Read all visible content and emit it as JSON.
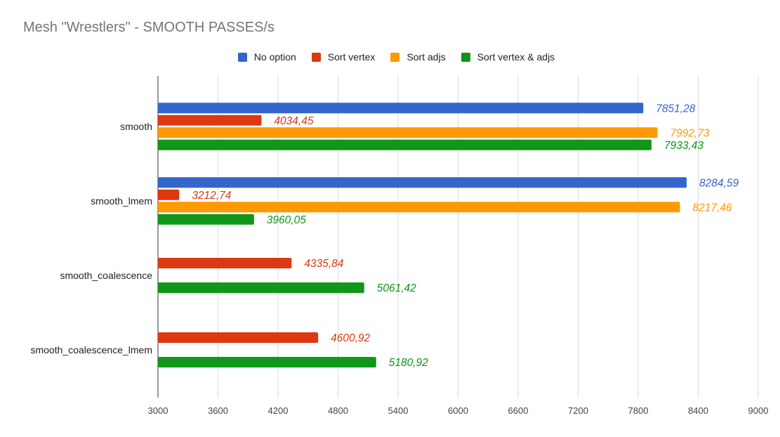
{
  "chart_data": {
    "type": "bar",
    "orientation": "horizontal",
    "title": "Mesh \"Wrestlers\" - SMOOTH PASSES/s",
    "xlabel": "",
    "ylabel": "",
    "xlim": [
      3000,
      9000
    ],
    "x_ticks": [
      "3000",
      "3600",
      "4200",
      "4800",
      "5400",
      "6000",
      "6600",
      "7200",
      "7800",
      "8400",
      "9000"
    ],
    "grid": true,
    "legend_position": "top",
    "categories": [
      "smooth",
      "smooth_lmem",
      "smooth_coalescence",
      "smooth_coalescence_lmem"
    ],
    "series": [
      {
        "name": "No option",
        "color": "#3366cc",
        "values": [
          7851.28,
          8284.59,
          null,
          null
        ],
        "labels": [
          "7851,28",
          "8284,59",
          "",
          ""
        ]
      },
      {
        "name": "Sort vertex",
        "color": "#dc3912",
        "values": [
          4034.45,
          3212.74,
          4335.84,
          4600.92
        ],
        "labels": [
          "4034,45",
          "3212,74",
          "4335,84",
          "4600,92"
        ]
      },
      {
        "name": "Sort adjs",
        "color": "#ff9900",
        "values": [
          7992.73,
          8217.46,
          null,
          null
        ],
        "labels": [
          "7992,73",
          "8217,46",
          "",
          ""
        ]
      },
      {
        "name": "Sort vertex & adjs",
        "color": "#109618",
        "values": [
          7933.43,
          3960.05,
          5061.42,
          5180.92
        ],
        "labels": [
          "7933,43",
          "3960,05",
          "5061,42",
          "5180,92"
        ]
      }
    ]
  }
}
